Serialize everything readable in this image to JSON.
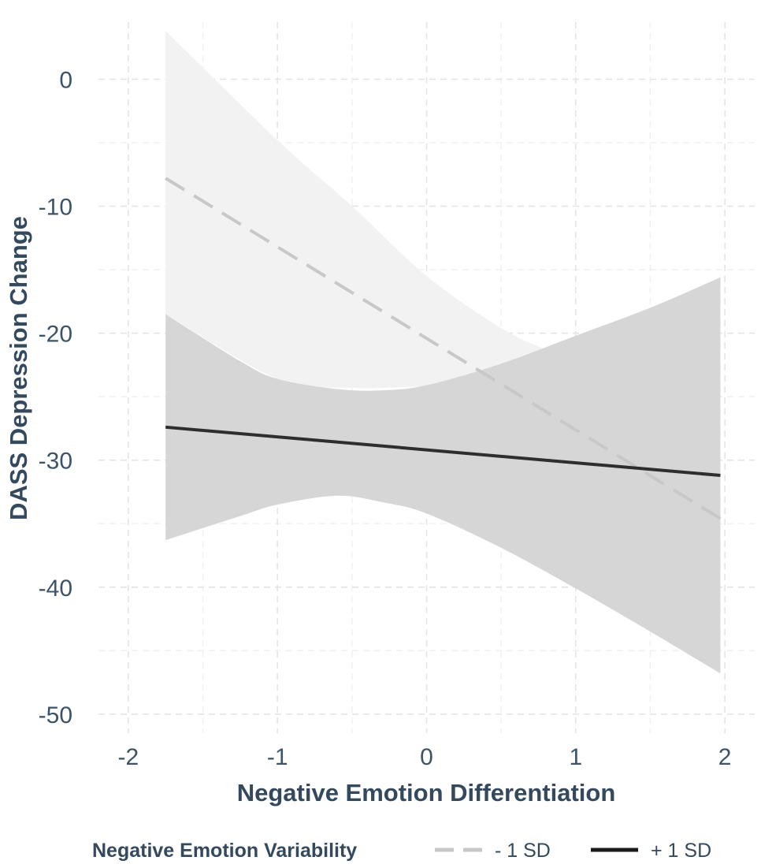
{
  "chart_data": {
    "type": "line",
    "title": "",
    "xlabel": "Negative Emotion Differentiation",
    "ylabel": "DASS Depression Change",
    "xlim": [
      -2.2,
      2.2
    ],
    "ylim": [
      -51.5,
      4.5
    ],
    "x_ticks": [
      -2,
      -1,
      0,
      1,
      2
    ],
    "x_tick_labels": [
      "-2",
      "-1",
      "0",
      "1",
      "2"
    ],
    "y_ticks": [
      0,
      -10,
      -20,
      -30,
      -40,
      -50
    ],
    "y_tick_labels": [
      "0",
      "-10",
      "-20",
      "-30",
      "-40",
      "-50"
    ],
    "grid": true,
    "legend": {
      "title": "Negative Emotion Variability",
      "position": "bottom"
    },
    "series": [
      {
        "name": "- 1 SD",
        "line_style": "dashed",
        "line_color": "#c8c8c8",
        "ribbon_color": "#f2f2f2",
        "x": [
          -1.75,
          1.97
        ],
        "y": [
          -7.8,
          -34.6
        ],
        "ribbon_x": [
          -1.75,
          -1.0,
          -0.5,
          0.0,
          0.5,
          0.8,
          1.0,
          1.5,
          1.97
        ],
        "ribbon_upper": [
          3.8,
          -4.8,
          -10.0,
          -15.5,
          -19.6,
          -21.3,
          -22.2,
          -25.3,
          -28.6
        ],
        "ribbon_lower": [
          -18.5,
          -23.6,
          -24.3,
          -24.2,
          -24.3,
          -25.2,
          -28.0,
          -35.0,
          -41.5
        ]
      },
      {
        "name": "+ 1 SD",
        "line_style": "solid",
        "line_color": "#2e2e2e",
        "ribbon_color": "#d4d4d4",
        "x": [
          -1.75,
          1.97
        ],
        "y": [
          -27.4,
          -31.2
        ],
        "ribbon_x": [
          -1.75,
          -1.25,
          -1.0,
          -0.6,
          -0.3,
          0.0,
          0.5,
          1.0,
          1.5,
          1.97
        ],
        "ribbon_upper": [
          -18.5,
          -22.2,
          -23.6,
          -24.4,
          -24.5,
          -24.1,
          -22.4,
          -20.2,
          -18.0,
          -15.6
        ],
        "ribbon_lower": [
          -36.3,
          -34.4,
          -33.5,
          -32.8,
          -33.3,
          -34.2,
          -36.9,
          -40.1,
          -43.5,
          -46.8
        ]
      }
    ]
  }
}
